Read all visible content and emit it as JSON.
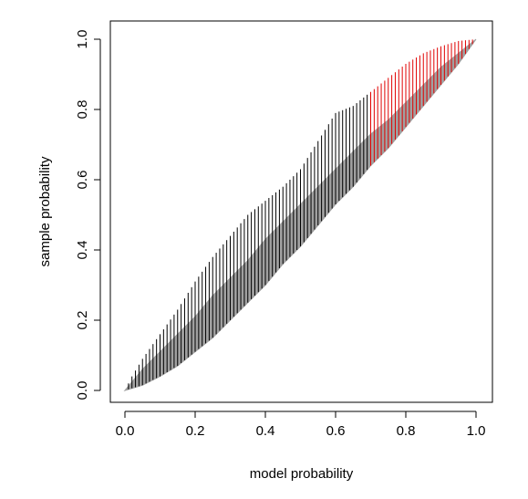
{
  "chart_data": {
    "type": "line",
    "title": "",
    "xlabel": "model probability",
    "ylabel": "sample probability",
    "xlim": [
      0,
      1
    ],
    "ylim": [
      0,
      1
    ],
    "grid": false,
    "x_ticks": [
      "0.0",
      "0.2",
      "0.4",
      "0.6",
      "0.8",
      "1.0"
    ],
    "y_ticks": [
      "0.0",
      "0.2",
      "0.4",
      "0.6",
      "0.8",
      "1.0"
    ],
    "colors": {
      "band": "#a0a0a0",
      "segments_black": "#000000",
      "segments_red": "#e00000",
      "axes": "#000000"
    },
    "band": {
      "x": [
        0.0,
        0.05,
        0.1,
        0.15,
        0.2,
        0.25,
        0.3,
        0.35,
        0.4,
        0.45,
        0.5,
        0.55,
        0.6,
        0.65,
        0.7,
        0.75,
        0.8,
        0.85,
        0.9,
        0.95,
        1.0
      ],
      "lower": [
        0.0,
        0.015,
        0.04,
        0.07,
        0.11,
        0.15,
        0.2,
        0.25,
        0.3,
        0.36,
        0.41,
        0.47,
        0.53,
        0.58,
        0.64,
        0.69,
        0.75,
        0.81,
        0.87,
        0.93,
        1.0
      ],
      "upper": [
        0.0,
        0.06,
        0.11,
        0.16,
        0.21,
        0.27,
        0.32,
        0.37,
        0.43,
        0.48,
        0.53,
        0.58,
        0.63,
        0.68,
        0.73,
        0.77,
        0.82,
        0.87,
        0.92,
        0.96,
        1.0
      ]
    },
    "segments": {
      "x_start": 0.01,
      "x_end": 0.99,
      "step": 0.01,
      "red_threshold": 0.7,
      "curve_x": [
        0.0,
        0.02,
        0.05,
        0.1,
        0.15,
        0.2,
        0.25,
        0.3,
        0.35,
        0.4,
        0.45,
        0.5,
        0.55,
        0.6,
        0.65,
        0.7,
        0.75,
        0.8,
        0.85,
        0.9,
        0.95,
        1.0
      ],
      "curve_y": [
        0.0,
        0.04,
        0.09,
        0.16,
        0.23,
        0.31,
        0.38,
        0.44,
        0.5,
        0.54,
        0.58,
        0.63,
        0.71,
        0.79,
        0.81,
        0.85,
        0.89,
        0.93,
        0.96,
        0.98,
        0.995,
        1.0
      ]
    }
  }
}
